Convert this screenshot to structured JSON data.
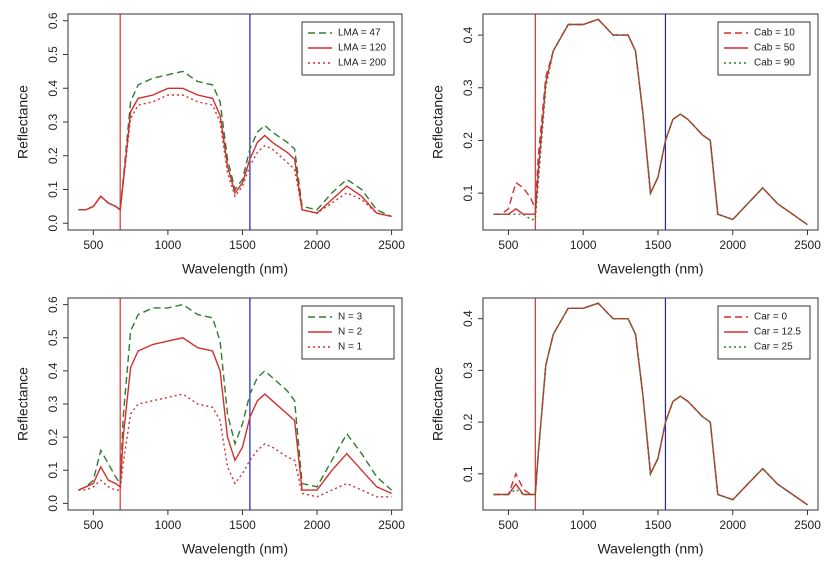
{
  "chart_data": [
    {
      "type": "line",
      "x_label": "Wavelength (nm)",
      "y_label": "Reflectance",
      "x": [
        400,
        450,
        500,
        550,
        600,
        650,
        680,
        700,
        750,
        800,
        900,
        1000,
        1100,
        1200,
        1300,
        1350,
        1400,
        1450,
        1500,
        1550,
        1600,
        1650,
        1700,
        1800,
        1850,
        1900,
        2000,
        2100,
        2200,
        2300,
        2400,
        2500
      ],
      "xlim": [
        330,
        2570
      ],
      "xticks": [
        500,
        1000,
        1500,
        2000,
        2500
      ],
      "ylim": [
        -0.02,
        0.62
      ],
      "yticks": [
        {
          "value": 0,
          "label": "0.0"
        },
        0.1,
        0.2,
        0.3,
        0.4,
        0.5,
        0.6
      ],
      "vlines": [
        {
          "x": 680,
          "color": "#e03030"
        },
        {
          "x": 1550,
          "color": "#2020d0"
        }
      ],
      "legend": "top-right",
      "series": [
        {
          "name": "LMA = 47",
          "color": "#2e7d32",
          "dash": "dashed",
          "values": [
            0.04,
            0.04,
            0.05,
            0.08,
            0.06,
            0.05,
            0.04,
            0.13,
            0.36,
            0.41,
            0.43,
            0.44,
            0.45,
            0.42,
            0.41,
            0.36,
            0.19,
            0.1,
            0.13,
            0.22,
            0.27,
            0.29,
            0.27,
            0.24,
            0.22,
            0.05,
            0.04,
            0.09,
            0.13,
            0.1,
            0.04,
            0.02
          ]
        },
        {
          "name": "LMA = 120",
          "color": "#d32f2f",
          "dash": "solid",
          "values": [
            0.04,
            0.04,
            0.05,
            0.08,
            0.06,
            0.05,
            0.04,
            0.12,
            0.33,
            0.37,
            0.38,
            0.4,
            0.4,
            0.38,
            0.37,
            0.32,
            0.17,
            0.09,
            0.12,
            0.19,
            0.24,
            0.26,
            0.24,
            0.21,
            0.19,
            0.04,
            0.03,
            0.07,
            0.11,
            0.08,
            0.03,
            0.02
          ]
        },
        {
          "name": "LMA = 200",
          "color": "#d32f2f",
          "dash": "dotted",
          "values": [
            0.04,
            0.04,
            0.05,
            0.08,
            0.06,
            0.05,
            0.04,
            0.12,
            0.31,
            0.35,
            0.36,
            0.38,
            0.38,
            0.36,
            0.35,
            0.3,
            0.15,
            0.08,
            0.11,
            0.17,
            0.21,
            0.23,
            0.22,
            0.18,
            0.16,
            0.04,
            0.03,
            0.06,
            0.09,
            0.07,
            0.03,
            0.02
          ]
        }
      ]
    },
    {
      "type": "line",
      "x_label": "Wavelength (nm)",
      "y_label": "Reflectance",
      "x": [
        400,
        450,
        500,
        550,
        600,
        650,
        680,
        700,
        750,
        800,
        900,
        1000,
        1100,
        1200,
        1300,
        1350,
        1400,
        1450,
        1500,
        1550,
        1600,
        1650,
        1700,
        1800,
        1850,
        1900,
        2000,
        2100,
        2200,
        2300,
        2400,
        2500
      ],
      "xlim": [
        330,
        2570
      ],
      "xticks": [
        500,
        1000,
        1500,
        2000,
        2500
      ],
      "ylim": [
        0.03,
        0.44
      ],
      "yticks": [
        0.1,
        0.2,
        0.3,
        0.4
      ],
      "vlines": [
        {
          "x": 680,
          "color": "#e03030"
        },
        {
          "x": 1550,
          "color": "#2020d0"
        }
      ],
      "legend": "top-right",
      "series": [
        {
          "name": "Cab = 10",
          "color": "#d32f2f",
          "dash": "dashed",
          "values": [
            0.06,
            0.06,
            0.07,
            0.12,
            0.11,
            0.09,
            0.07,
            0.17,
            0.32,
            0.37,
            0.42,
            0.42,
            0.43,
            0.4,
            0.4,
            0.37,
            0.25,
            0.1,
            0.13,
            0.2,
            0.24,
            0.25,
            0.24,
            0.21,
            0.2,
            0.06,
            0.05,
            0.08,
            0.11,
            0.08,
            0.06,
            0.04
          ]
        },
        {
          "name": "Cab = 50",
          "color": "#d32f2f",
          "dash": "solid",
          "values": [
            0.06,
            0.06,
            0.06,
            0.07,
            0.06,
            0.06,
            0.06,
            0.14,
            0.31,
            0.37,
            0.42,
            0.42,
            0.43,
            0.4,
            0.4,
            0.37,
            0.25,
            0.1,
            0.13,
            0.2,
            0.24,
            0.25,
            0.24,
            0.21,
            0.2,
            0.06,
            0.05,
            0.08,
            0.11,
            0.08,
            0.06,
            0.04
          ]
        },
        {
          "name": "Cab = 90",
          "color": "#2e7d32",
          "dash": "dotted",
          "values": [
            0.06,
            0.06,
            0.06,
            0.06,
            0.06,
            0.05,
            0.05,
            0.12,
            0.3,
            0.37,
            0.42,
            0.42,
            0.43,
            0.4,
            0.4,
            0.37,
            0.25,
            0.1,
            0.13,
            0.2,
            0.24,
            0.25,
            0.24,
            0.21,
            0.2,
            0.06,
            0.05,
            0.08,
            0.11,
            0.08,
            0.06,
            0.04
          ]
        }
      ]
    },
    {
      "type": "line",
      "x_label": "Wavelength (nm)",
      "y_label": "Reflectance",
      "x": [
        400,
        450,
        500,
        550,
        600,
        650,
        680,
        700,
        750,
        800,
        900,
        1000,
        1100,
        1200,
        1300,
        1350,
        1400,
        1450,
        1500,
        1550,
        1600,
        1650,
        1700,
        1800,
        1850,
        1900,
        2000,
        2100,
        2200,
        2300,
        2400,
        2500
      ],
      "xlim": [
        330,
        2570
      ],
      "xticks": [
        500,
        1000,
        1500,
        2000,
        2500
      ],
      "ylim": [
        -0.02,
        0.62
      ],
      "yticks": [
        {
          "value": 0,
          "label": "0.0"
        },
        0.1,
        0.2,
        0.3,
        0.4,
        0.5,
        0.6
      ],
      "vlines": [
        {
          "x": 680,
          "color": "#e03030"
        },
        {
          "x": 1550,
          "color": "#2020d0"
        }
      ],
      "legend": "top-right",
      "series": [
        {
          "name": "N = 3",
          "color": "#2e7d32",
          "dash": "dashed",
          "values": [
            0.04,
            0.05,
            0.07,
            0.16,
            0.12,
            0.08,
            0.06,
            0.26,
            0.52,
            0.57,
            0.59,
            0.59,
            0.6,
            0.57,
            0.56,
            0.49,
            0.27,
            0.18,
            0.24,
            0.33,
            0.38,
            0.4,
            0.38,
            0.34,
            0.31,
            0.06,
            0.05,
            0.13,
            0.21,
            0.15,
            0.08,
            0.04
          ]
        },
        {
          "name": "N = 2",
          "color": "#d32f2f",
          "dash": "solid",
          "values": [
            0.04,
            0.05,
            0.06,
            0.11,
            0.07,
            0.06,
            0.05,
            0.2,
            0.41,
            0.46,
            0.48,
            0.49,
            0.5,
            0.47,
            0.46,
            0.4,
            0.2,
            0.13,
            0.17,
            0.26,
            0.31,
            0.33,
            0.31,
            0.27,
            0.25,
            0.04,
            0.04,
            0.1,
            0.15,
            0.1,
            0.05,
            0.03
          ]
        },
        {
          "name": "N = 1",
          "color": "#d32f2f",
          "dash": "dotted",
          "values": [
            0.04,
            0.04,
            0.05,
            0.07,
            0.05,
            0.04,
            0.04,
            0.12,
            0.27,
            0.3,
            0.31,
            0.32,
            0.33,
            0.3,
            0.29,
            0.25,
            0.11,
            0.06,
            0.09,
            0.13,
            0.16,
            0.18,
            0.17,
            0.14,
            0.13,
            0.03,
            0.02,
            0.04,
            0.06,
            0.04,
            0.02,
            0.02
          ]
        }
      ]
    },
    {
      "type": "line",
      "x_label": "Wavelength (nm)",
      "y_label": "Reflectance",
      "x": [
        400,
        450,
        500,
        550,
        600,
        650,
        680,
        700,
        750,
        800,
        900,
        1000,
        1100,
        1200,
        1300,
        1350,
        1400,
        1450,
        1500,
        1550,
        1600,
        1650,
        1700,
        1800,
        1850,
        1900,
        2000,
        2100,
        2200,
        2300,
        2400,
        2500
      ],
      "xlim": [
        330,
        2570
      ],
      "xticks": [
        500,
        1000,
        1500,
        2000,
        2500
      ],
      "ylim": [
        0.03,
        0.44
      ],
      "yticks": [
        0.1,
        0.2,
        0.3,
        0.4
      ],
      "vlines": [
        {
          "x": 680,
          "color": "#e03030"
        },
        {
          "x": 1550,
          "color": "#2020d0"
        }
      ],
      "legend": "top-right",
      "series": [
        {
          "name": "Car = 0",
          "color": "#d32f2f",
          "dash": "dashed",
          "values": [
            0.06,
            0.06,
            0.06,
            0.1,
            0.07,
            0.06,
            0.06,
            0.14,
            0.31,
            0.37,
            0.42,
            0.42,
            0.43,
            0.4,
            0.4,
            0.37,
            0.25,
            0.1,
            0.13,
            0.2,
            0.24,
            0.25,
            0.24,
            0.21,
            0.2,
            0.06,
            0.05,
            0.08,
            0.11,
            0.08,
            0.06,
            0.04
          ]
        },
        {
          "name": "Car = 12.5",
          "color": "#d32f2f",
          "dash": "solid",
          "values": [
            0.06,
            0.06,
            0.06,
            0.08,
            0.06,
            0.06,
            0.06,
            0.14,
            0.31,
            0.37,
            0.42,
            0.42,
            0.43,
            0.4,
            0.4,
            0.37,
            0.25,
            0.1,
            0.13,
            0.2,
            0.24,
            0.25,
            0.24,
            0.21,
            0.2,
            0.06,
            0.05,
            0.08,
            0.11,
            0.08,
            0.06,
            0.04
          ]
        },
        {
          "name": "Car = 25",
          "color": "#2e7d32",
          "dash": "dotted",
          "values": [
            0.06,
            0.06,
            0.06,
            0.07,
            0.06,
            0.06,
            0.06,
            0.14,
            0.31,
            0.37,
            0.42,
            0.42,
            0.43,
            0.4,
            0.4,
            0.37,
            0.25,
            0.1,
            0.13,
            0.2,
            0.24,
            0.25,
            0.24,
            0.21,
            0.2,
            0.06,
            0.05,
            0.08,
            0.11,
            0.08,
            0.06,
            0.04
          ]
        }
      ]
    }
  ]
}
